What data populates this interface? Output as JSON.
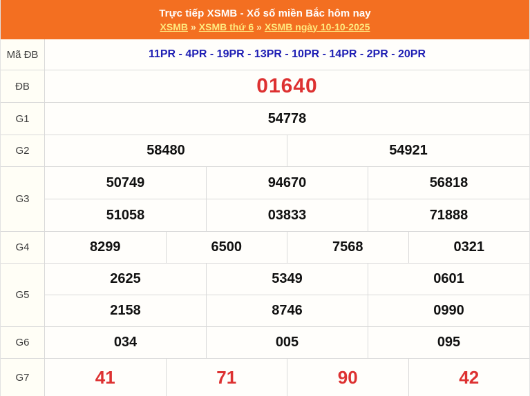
{
  "header": {
    "title": "Trực tiếp XSMB - Xổ số miền Bắc hôm nay",
    "breadcrumb": {
      "separator": "»",
      "links": [
        "XSMB",
        "XSMB thứ 6",
        "XSMB ngày 10-10-2025"
      ]
    }
  },
  "colors": {
    "header_bg": "#f36f21",
    "link_yellow": "#ffe97f",
    "code_blue": "#1f1fb4",
    "special_red": "#dd3131",
    "border_gray": "#d9d9d9"
  },
  "results": {
    "ma_db": {
      "label": "Mã ĐB",
      "value": "11PR - 4PR - 19PR - 13PR - 10PR - 14PR - 2PR - 20PR"
    },
    "db": {
      "label": "ĐB",
      "value": "01640"
    },
    "g1": {
      "label": "G1",
      "value": "54778"
    },
    "g2": {
      "label": "G2",
      "values": [
        "58480",
        "54921"
      ]
    },
    "g3": {
      "label": "G3",
      "rows": [
        [
          "50749",
          "94670",
          "56818"
        ],
        [
          "51058",
          "03833",
          "71888"
        ]
      ]
    },
    "g4": {
      "label": "G4",
      "values": [
        "8299",
        "6500",
        "7568",
        "0321"
      ]
    },
    "g5": {
      "label": "G5",
      "rows": [
        [
          "2625",
          "5349",
          "0601"
        ],
        [
          "2158",
          "8746",
          "0990"
        ]
      ]
    },
    "g6": {
      "label": "G6",
      "values": [
        "034",
        "005",
        "095"
      ]
    },
    "g7": {
      "label": "G7",
      "values": [
        "41",
        "71",
        "90",
        "42"
      ]
    }
  }
}
